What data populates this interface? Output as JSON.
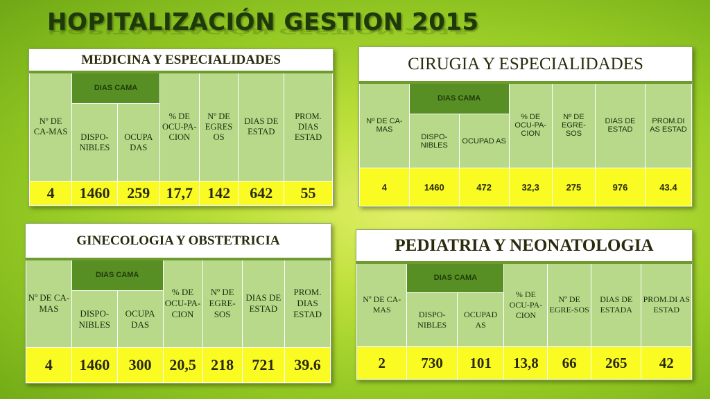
{
  "title": "HOPITALIZACIÓN GESTION 2015",
  "tables": {
    "medicina": {
      "title": "MEDICINA Y ESPECIALIDADES",
      "h_num_camas": "Nº DE CA-MAS",
      "h_dias_cama": "DIAS CAMA",
      "h_disponibles": "DISPO-NIBLES",
      "h_ocupadas": "OCUPA DAS",
      "h_pct_ocupacion": "% DE OCU-PA-CION",
      "h_num_egresos": "Nº DE EGRES OS",
      "h_dias_estada": "DIAS DE ESTAD",
      "h_prom_dias": "PROM. DIAS ESTAD",
      "values": {
        "num_camas": "4",
        "disponibles": "1460",
        "ocupadas": "259",
        "pct_ocupacion": "17,7",
        "num_egresos": "142",
        "dias_estada": "642",
        "prom_dias": "55"
      }
    },
    "cirugia": {
      "title": "CIRUGIA Y ESPECIALIDADES",
      "h_num_camas": "Nº DE CA-MAS",
      "h_dias_cama": "DIAS CAMA",
      "h_disponibles": "DISPO-NIBLES",
      "h_ocupadas": "OCUPAD AS",
      "h_pct_ocupacion": "% DE OCU-PA-CION",
      "h_num_egresos": "Nº DE EGRE-SOS",
      "h_dias_estada": "DIAS DE ESTAD",
      "h_prom_dias": "PROM.DI AS ESTAD",
      "values": {
        "num_camas": "4",
        "disponibles": "1460",
        "ocupadas": "472",
        "pct_ocupacion": "32,3",
        "num_egresos": "275",
        "dias_estada": "976",
        "prom_dias": "43.4"
      }
    },
    "ginecologia": {
      "title": "GINECOLOGIA Y OBSTETRICIA",
      "h_num_camas": "Nº DE CA-MAS",
      "h_dias_cama": "DIAS CAMA",
      "h_disponibles": "DISPO-NIBLES",
      "h_ocupadas": "OCUPA DAS",
      "h_pct_ocupacion": "% DE OCU-PA-CION",
      "h_num_egresos": "Nº DE EGRE-SOS",
      "h_dias_estada": "DIAS DE ESTAD",
      "h_prom_dias": "PROM. DIAS ESTAD",
      "values": {
        "num_camas": "4",
        "disponibles": "1460",
        "ocupadas": "300",
        "pct_ocupacion": "20,5",
        "num_egresos": "218",
        "dias_estada": "721",
        "prom_dias": "39.6"
      }
    },
    "pediatria": {
      "title": "PEDIATRIA Y NEONATOLOGIA",
      "h_num_camas": "Nº DE CA-MAS",
      "h_dias_cama": "DIAS CAMA",
      "h_disponibles": "DISPO-NIBLES",
      "h_ocupadas": "OCUPAD AS",
      "h_pct_ocupacion": "% DE OCU-PA-CION",
      "h_num_egresos": "Nº DE EGRE-SOS",
      "h_dias_estada": "DIAS DE ESTADA",
      "h_prom_dias": "PROM.DI AS ESTAD",
      "values": {
        "num_camas": "2",
        "disponibles": "730",
        "ocupadas": "101",
        "pct_ocupacion": "13,8",
        "num_egresos": "66",
        "dias_estada": "265",
        "prom_dias": "42"
      }
    }
  }
}
